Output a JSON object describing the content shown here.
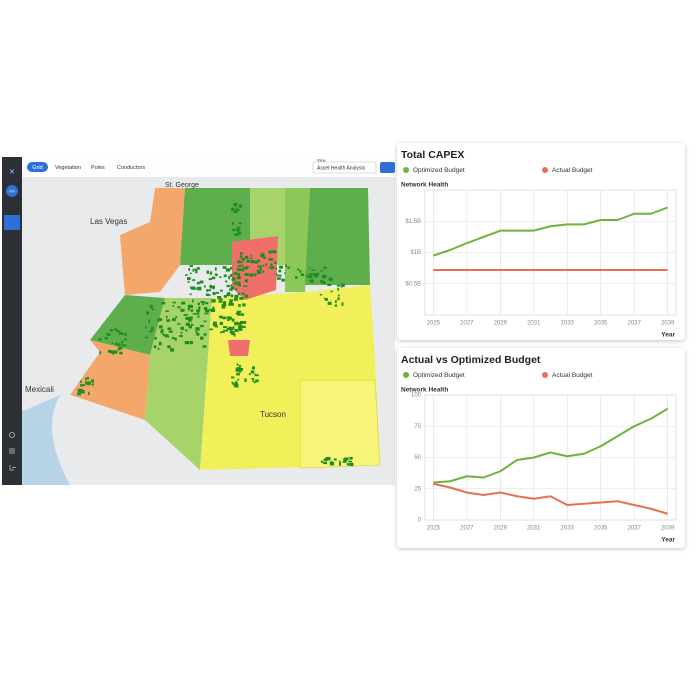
{
  "sidebar": {
    "avatar": "AA"
  },
  "tabs": [
    "Grid",
    "Vegetation",
    "Poles",
    "Conductors"
  ],
  "view": {
    "label": "View",
    "value": "Asset Health Analysis"
  },
  "map_labels": [
    "St. George",
    "Las Vegas",
    "Mexicali",
    "Tucson"
  ],
  "chart_data": [
    {
      "type": "line",
      "title": "Total CAPEX",
      "y_label": "Network Health",
      "x_label": "Year",
      "x": [
        2025,
        2026,
        2027,
        2028,
        2029,
        2030,
        2031,
        2032,
        2033,
        2034,
        2035,
        2036,
        2037,
        2038,
        2039
      ],
      "series": [
        {
          "name": "Optimized Budget",
          "color": "#6db33f",
          "values": [
            0.95,
            1.04,
            1.15,
            1.25,
            1.35,
            1.35,
            1.35,
            1.42,
            1.45,
            1.45,
            1.52,
            1.52,
            1.62,
            1.62,
            1.72
          ]
        },
        {
          "name": "Actual Budget",
          "color": "#e8704f",
          "values": [
            0.72,
            0.72,
            0.72,
            0.72,
            0.72,
            0.72,
            0.72,
            0.72,
            0.72,
            0.72,
            0.72,
            0.72,
            0.72,
            0.72,
            0.72
          ]
        }
      ],
      "xlim": [
        2024.5,
        2039.5
      ],
      "xticks": [
        2025,
        2027,
        2029,
        2031,
        2033,
        2035,
        2037,
        2039
      ],
      "ylim": [
        0,
        2
      ],
      "yticks": [
        {
          "value": 0.5,
          "label": "$0.5B"
        },
        {
          "value": 1,
          "label": "$1B"
        },
        {
          "value": 1.5,
          "label": "$1.5B"
        }
      ],
      "grid": true
    },
    {
      "type": "line",
      "title": "Actual vs Optimized Budget",
      "y_label": "Network Health",
      "x_label": "Year",
      "x": [
        2025,
        2026,
        2027,
        2028,
        2029,
        2030,
        2031,
        2032,
        2033,
        2034,
        2035,
        2036,
        2037,
        2038,
        2039
      ],
      "series": [
        {
          "name": "Optimized Budget",
          "color": "#6db33f",
          "values": [
            30,
            31,
            35,
            34,
            39,
            48,
            50,
            54,
            51,
            53,
            59,
            67,
            75,
            81,
            89
          ]
        },
        {
          "name": "Actual Budget",
          "color": "#e8704f",
          "values": [
            29,
            26,
            22,
            20,
            22,
            19,
            17,
            19,
            12,
            13,
            14,
            15,
            12,
            9,
            5
          ]
        }
      ],
      "xlim": [
        2024.5,
        2039.5
      ],
      "xticks": [
        2025,
        2027,
        2029,
        2031,
        2033,
        2035,
        2037,
        2039
      ],
      "ylim": [
        0,
        100
      ],
      "yticks": [
        0,
        25,
        50,
        75,
        100
      ],
      "grid": true
    }
  ]
}
